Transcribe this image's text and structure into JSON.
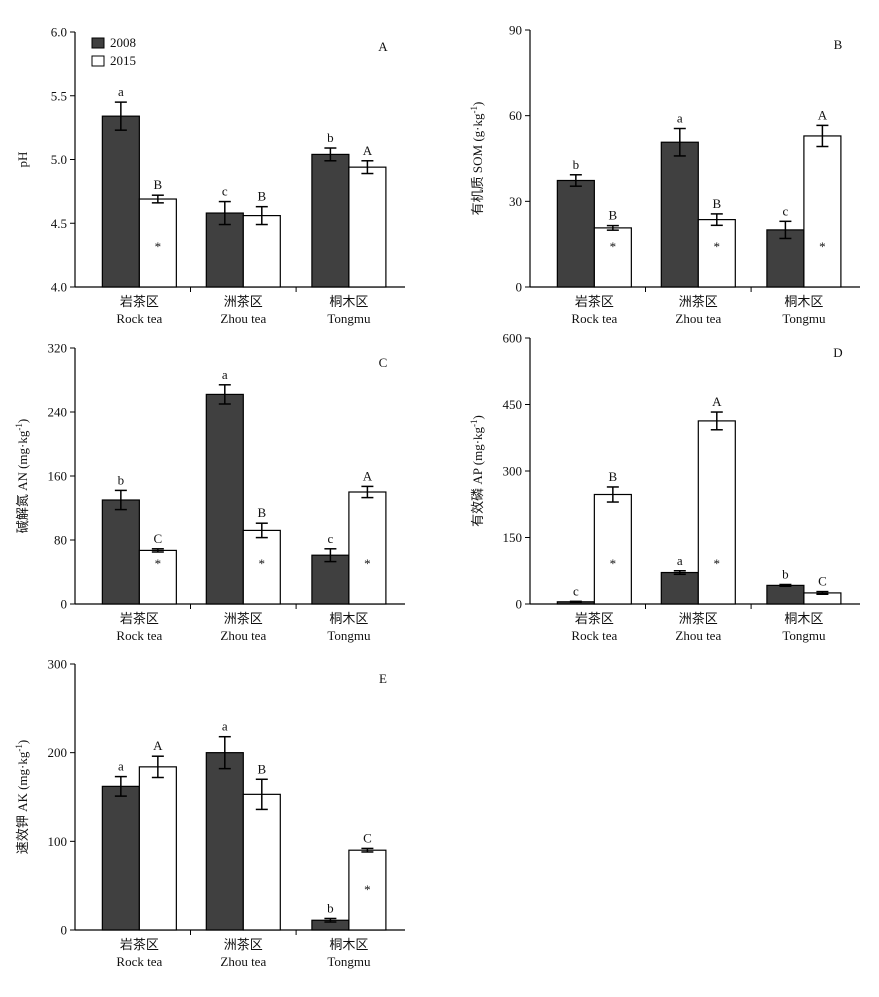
{
  "legend": {
    "items": [
      {
        "label": "2008",
        "color": "#404040"
      },
      {
        "label": "2015",
        "color": "#ffffff"
      }
    ]
  },
  "categories": [
    {
      "zh": "岩茶区",
      "en": "Rock tea"
    },
    {
      "zh": "洲茶区",
      "en": "Zhou tea"
    },
    {
      "zh": "桐木区",
      "en": "Tongmu"
    }
  ],
  "colors": {
    "series_2008": "#404040",
    "series_2015": "#ffffff",
    "stroke": "#000000"
  },
  "chart_data": [
    {
      "type": "bar",
      "panel": "A",
      "ylabel": "pH",
      "ylim": [
        4.0,
        6.0
      ],
      "yticks": [
        "4.0",
        "4.5",
        "5.0",
        "5.5",
        "6.0"
      ],
      "tick_values": [
        4.0,
        4.5,
        5.0,
        5.5,
        6.0
      ],
      "series": [
        {
          "name": "2008",
          "values": [
            5.34,
            4.58,
            5.04
          ],
          "errors": [
            0.11,
            0.09,
            0.05
          ],
          "letters": [
            "a",
            "c",
            "b"
          ],
          "stars": [
            "",
            "",
            ""
          ]
        },
        {
          "name": "2015",
          "values": [
            4.69,
            4.56,
            4.94
          ],
          "errors": [
            0.03,
            0.07,
            0.05
          ],
          "letters": [
            "B",
            "B",
            "A"
          ],
          "stars": [
            "*",
            "",
            ""
          ]
        }
      ]
    },
    {
      "type": "bar",
      "panel": "B",
      "ylabel": "有机质 SOM (g·kg",
      "ylabel_sup": "-1",
      "ylabel_tail": ")",
      "ylim": [
        0,
        90
      ],
      "yticks": [
        "0",
        "30",
        "60",
        "90"
      ],
      "tick_values": [
        0,
        30,
        60,
        90
      ],
      "series": [
        {
          "name": "2008",
          "values": [
            37.3,
            50.7,
            20.0
          ],
          "errors": [
            2.0,
            4.8,
            3.0
          ],
          "letters": [
            "b",
            "a",
            "c"
          ],
          "stars": [
            "",
            "",
            ""
          ]
        },
        {
          "name": "2015",
          "values": [
            20.7,
            23.6,
            52.9
          ],
          "errors": [
            0.8,
            2.0,
            3.7
          ],
          "letters": [
            "B",
            "B",
            "A"
          ],
          "stars": [
            "*",
            "*",
            "*"
          ]
        }
      ]
    },
    {
      "type": "bar",
      "panel": "C",
      "ylabel": "碱解氮 AN (mg·kg",
      "ylabel_sup": "-1",
      "ylabel_tail": ")",
      "ylim": [
        0,
        320
      ],
      "yticks": [
        "0",
        "80",
        "160",
        "240",
        "320"
      ],
      "tick_values": [
        0,
        80,
        160,
        240,
        320
      ],
      "series": [
        {
          "name": "2008",
          "values": [
            130,
            262,
            61
          ],
          "errors": [
            12,
            12,
            8
          ],
          "letters": [
            "b",
            "a",
            "c"
          ],
          "stars": [
            "",
            "",
            ""
          ]
        },
        {
          "name": "2015",
          "values": [
            67,
            92,
            140
          ],
          "errors": [
            2,
            9,
            7
          ],
          "letters": [
            "C",
            "B",
            "A"
          ],
          "stars": [
            "*",
            "*",
            "*"
          ]
        }
      ]
    },
    {
      "type": "bar",
      "panel": "D",
      "ylabel": "有效磷 AP (mg·kg",
      "ylabel_sup": "-1",
      "ylabel_tail": ")",
      "ylim": [
        0,
        600
      ],
      "yticks": [
        "0",
        "150",
        "300",
        "450",
        "600"
      ],
      "tick_values": [
        0,
        150,
        300,
        450,
        600
      ],
      "series": [
        {
          "name": "2008",
          "values": [
            5,
            71,
            42
          ],
          "errors": [
            1,
            4,
            2
          ],
          "letters": [
            "c",
            "a",
            "b"
          ],
          "stars": [
            "",
            "",
            ""
          ]
        },
        {
          "name": "2015",
          "values": [
            247,
            413,
            25
          ],
          "errors": [
            17,
            20,
            3
          ],
          "letters": [
            "B",
            "A",
            "C"
          ],
          "stars": [
            "*",
            "*",
            ""
          ]
        }
      ]
    },
    {
      "type": "bar",
      "panel": "E",
      "ylabel": "速效钾 AK (mg·kg",
      "ylabel_sup": "-1",
      "ylabel_tail": ")",
      "ylim": [
        0,
        300
      ],
      "yticks": [
        "0",
        "100",
        "200",
        "300"
      ],
      "tick_values": [
        0,
        100,
        200,
        300
      ],
      "series": [
        {
          "name": "2008",
          "values": [
            162,
            200,
            11
          ],
          "errors": [
            11,
            18,
            2
          ],
          "letters": [
            "a",
            "a",
            "b"
          ],
          "stars": [
            "",
            "",
            ""
          ]
        },
        {
          "name": "2015",
          "values": [
            184,
            153,
            90
          ],
          "errors": [
            12,
            17,
            2
          ],
          "letters": [
            "A",
            "B",
            "C"
          ],
          "stars": [
            "",
            "",
            "*"
          ]
        }
      ]
    }
  ]
}
